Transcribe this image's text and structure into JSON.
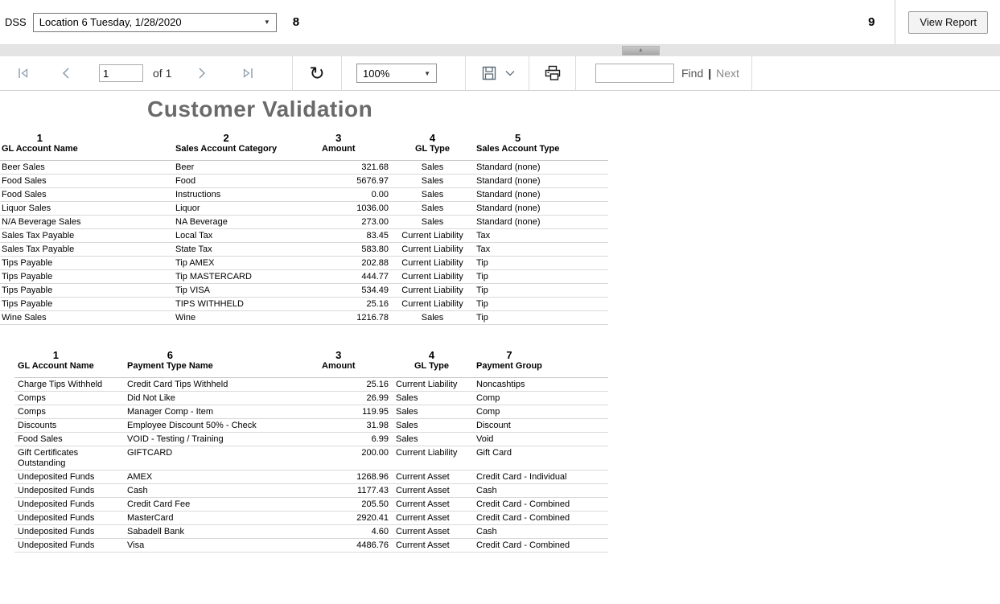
{
  "param_bar": {
    "dss_label": "DSS",
    "location_dropdown_value": "Location 6 Tuesday, 1/28/2020",
    "param_left": "8",
    "param_right": "9",
    "view_report_label": "View Report"
  },
  "toolbar": {
    "page_number": "1",
    "pages_label": "of 1",
    "zoom_value": "100%",
    "find_value": "",
    "find_label": "Find",
    "find_separator": "|",
    "next_label": "Next"
  },
  "icons": {
    "dropdown_arrow": "▼",
    "collapse_arrow": "▲",
    "refresh": "↻"
  },
  "colors": {
    "title_gray": "#6a6a6a",
    "toolbar_icon_blue_gray": "#8b9aa7",
    "row_border": "#d9d9d9"
  },
  "report": {
    "title": "Customer Validation",
    "tables": [
      {
        "headers": [
          {
            "num": "1",
            "label": "GL Account Name"
          },
          {
            "num": "2",
            "label": "Sales Account Category"
          },
          {
            "num": "3",
            "label": "Amount"
          },
          {
            "num": "4",
            "label": "GL Type"
          },
          {
            "num": "5",
            "label": "Sales Account Type"
          }
        ],
        "rows": [
          [
            "Beer Sales",
            "Beer",
            "321.68",
            "Sales",
            "Standard (none)"
          ],
          [
            "Food Sales",
            "Food",
            "5676.97",
            "Sales",
            "Standard (none)"
          ],
          [
            "Food Sales",
            "Instructions",
            "0.00",
            "Sales",
            "Standard (none)"
          ],
          [
            "Liquor Sales",
            "Liquor",
            "1036.00",
            "Sales",
            "Standard (none)"
          ],
          [
            "N/A Beverage Sales",
            "NA Beverage",
            "273.00",
            "Sales",
            "Standard (none)"
          ],
          [
            "Sales Tax Payable",
            "Local Tax",
            "83.45",
            "Current Liability",
            "Tax"
          ],
          [
            "Sales Tax Payable",
            "State Tax",
            "583.80",
            "Current Liability",
            "Tax"
          ],
          [
            "Tips Payable",
            "Tip AMEX",
            "202.88",
            "Current Liability",
            "Tip"
          ],
          [
            "Tips Payable",
            "Tip MASTERCARD",
            "444.77",
            "Current Liability",
            "Tip"
          ],
          [
            "Tips Payable",
            "Tip VISA",
            "534.49",
            "Current Liability",
            "Tip"
          ],
          [
            "Tips Payable",
            "TIPS WITHHELD",
            "25.16",
            "Current Liability",
            "Tip"
          ],
          [
            "Wine Sales",
            "Wine",
            "1216.78",
            "Sales",
            "Tip"
          ]
        ]
      },
      {
        "headers": [
          {
            "num": "1",
            "label": "GL Account Name"
          },
          {
            "num": "6",
            "label": "Payment Type Name"
          },
          {
            "num": "3",
            "label": "Amount"
          },
          {
            "num": "4",
            "label": "GL Type"
          },
          {
            "num": "7",
            "label": "Payment Group"
          }
        ],
        "rows": [
          [
            "Charge Tips Withheld",
            "Credit Card Tips Withheld",
            "25.16",
            "Current Liability",
            "Noncashtips"
          ],
          [
            "Comps",
            "Did Not Like",
            "26.99",
            "Sales",
            "Comp"
          ],
          [
            "Comps",
            "Manager Comp - Item",
            "119.95",
            "Sales",
            "Comp"
          ],
          [
            "Discounts",
            "Employee Discount 50% - Check",
            "31.98",
            "Sales",
            "Discount"
          ],
          [
            "Food Sales",
            "VOID - Testing / Training",
            "6.99",
            "Sales",
            "Void"
          ],
          [
            "Gift Certificates Outstanding",
            "GIFTCARD",
            "200.00",
            "Current Liability",
            "Gift Card"
          ],
          [
            "Undeposited Funds",
            "AMEX",
            "1268.96",
            "Current Asset",
            "Credit Card - Individual"
          ],
          [
            "Undeposited Funds",
            "Cash",
            "1177.43",
            "Current Asset",
            "Cash"
          ],
          [
            "Undeposited Funds",
            "Credit Card Fee",
            "205.50",
            "Current Asset",
            "Credit Card - Combined"
          ],
          [
            "Undeposited Funds",
            "MasterCard",
            "2920.41",
            "Current Asset",
            "Credit Card - Combined"
          ],
          [
            "Undeposited Funds",
            "Sabadell Bank",
            "4.60",
            "Current Asset",
            "Cash"
          ],
          [
            "Undeposited Funds",
            "Visa",
            "4486.76",
            "Current Asset",
            "Credit Card - Combined"
          ]
        ]
      }
    ]
  }
}
